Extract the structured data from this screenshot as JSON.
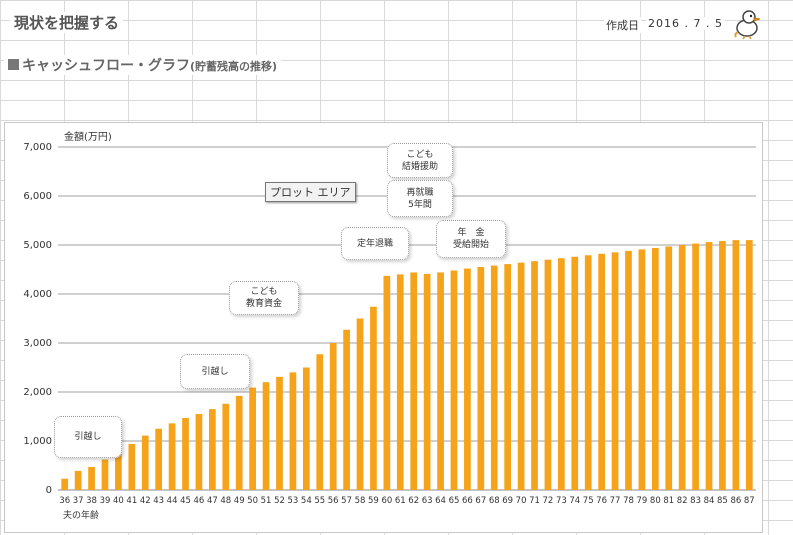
{
  "header": {
    "title": "現状を把握する",
    "date_label": "作成日",
    "date_value": "2016 . 7 . 5"
  },
  "section": {
    "title": "キャッシュフロー・グラフ",
    "subtitle": "(貯蓄残高の推移)"
  },
  "tooltip": "プロット エリア",
  "chart_data": {
    "type": "bar",
    "ylabel": "金額(万円)",
    "xlabel": "夫の年齢",
    "ylim": [
      0,
      7000
    ],
    "yticks": [
      0,
      1000,
      2000,
      3000,
      4000,
      5000,
      6000,
      7000
    ],
    "ytick_labels": [
      "0",
      "1,000",
      "2,000",
      "3,000",
      "4,000",
      "5,000",
      "6,000",
      "7,000"
    ],
    "grid": true,
    "bar_color": "#f5a31a",
    "categories": [
      "36",
      "37",
      "38",
      "39",
      "40",
      "41",
      "42",
      "43",
      "44",
      "45",
      "46",
      "47",
      "48",
      "49",
      "50",
      "51",
      "52",
      "53",
      "54",
      "55",
      "56",
      "57",
      "58",
      "59",
      "60",
      "61",
      "62",
      "63",
      "64",
      "65",
      "66",
      "67",
      "68",
      "69",
      "70",
      "71",
      "72",
      "73",
      "74",
      "75",
      "76",
      "77",
      "78",
      "79",
      "80",
      "81",
      "82",
      "83",
      "84",
      "85",
      "86",
      "87"
    ],
    "values": [
      230,
      390,
      470,
      620,
      780,
      940,
      1110,
      1250,
      1360,
      1470,
      1550,
      1650,
      1760,
      1920,
      2090,
      2200,
      2310,
      2400,
      2500,
      2770,
      3000,
      3270,
      3500,
      3740,
      4370,
      4400,
      4440,
      4410,
      4440,
      4480,
      4520,
      4550,
      4580,
      4610,
      4640,
      4670,
      4700,
      4730,
      4760,
      4790,
      4820,
      4850,
      4880,
      4910,
      4940,
      4970,
      5000,
      5030,
      5060,
      5080,
      5100,
      5100
    ],
    "annotations": [
      {
        "lines": [
          "引越し"
        ]
      },
      {
        "lines": [
          "引越し"
        ]
      },
      {
        "lines": [
          "こども",
          "教育資金"
        ]
      },
      {
        "lines": [
          "定年退職"
        ]
      },
      {
        "lines": [
          "こども",
          "結婚援助"
        ]
      },
      {
        "lines": [
          "再就職",
          "5年間"
        ]
      },
      {
        "lines": [
          "年　金",
          "受給開始"
        ]
      }
    ]
  }
}
